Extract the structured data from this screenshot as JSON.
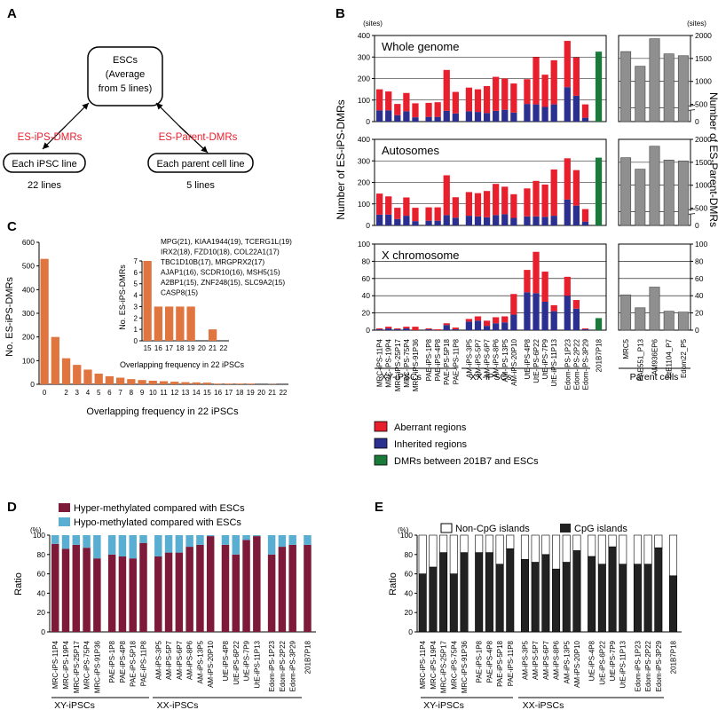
{
  "colors": {
    "aberrant": "#e8202e",
    "inherited": "#2b2f8f",
    "green": "#1a7a3a",
    "gray": "#8f8f8f",
    "orange": "#e07540",
    "hyper": "#7d1a3a",
    "hypo": "#5aaed2",
    "cpg": "#222222",
    "noncpg": "#ffffff"
  },
  "panelA": {
    "letter": "A",
    "esc_lines": [
      "ESCs",
      "(Average",
      "from 5 lines)"
    ],
    "left_label": "ES-iPS-DMRs",
    "right_label": "ES-Parent-DMRs",
    "left_box": "Each iPSC line",
    "right_box": "Each parent cell line",
    "left_count": "22 lines",
    "right_count": "5 lines"
  },
  "panelB": {
    "letter": "B",
    "sites_left": "(sites)",
    "sites_right": "(sites)",
    "ylabel_left": "Number of ES-iPS-DMRs",
    "ylabel_right": "Number of ES-Parent-DMRs",
    "group_labels": [
      "XY-iPSCs",
      "XX-iPSCs",
      "Parent cells"
    ],
    "legend": [
      "Aberrant regions",
      "Inherited regions",
      "DMRs between 201B7 and ESCs"
    ],
    "ticks_big": [
      "0",
      "100",
      "200",
      "300",
      "400"
    ],
    "ticks_right_big": [
      "500",
      "1000",
      "1500",
      "2000"
    ],
    "ticks_x": [
      "0",
      "20",
      "40",
      "60",
      "80",
      "100"
    ],
    "ticks_right_x": [
      "0",
      "20",
      "40",
      "60",
      "80",
      "100"
    ],
    "tick_right_zero": "0"
  },
  "chart_data": [
    {
      "type": "bar",
      "title": "Whole genome",
      "stacked": true,
      "ylim": [
        0,
        400
      ],
      "categories": [
        "MRC-iPS-11P4",
        "MRC-iPS-19P4",
        "MRC-iPS-25P17",
        "MRC-iPS-75P4",
        "MRC-iPS-91P36",
        "PAE-iPS-1P8",
        "PAE-iPS-4P8",
        "PAE-iPS-5P18",
        "PAE-iPS-11P8",
        "AM-iPS-3P5",
        "AM-iPS-5P7",
        "AM-iPS-6P7",
        "AM-iPS-8P6",
        "AM-iPS-13P5",
        "AM-iPS-20P10",
        "UtE-iPS-4P8",
        "UtE-iPS-6P22",
        "UtE-iPS-7P9",
        "UtE-iPS-11P13",
        "Edom-iPS-1P23",
        "Edom-iPS-2P22",
        "Edom-iPS-3P29",
        "201B7P18"
      ],
      "series": [
        {
          "name": "Inherited regions",
          "values": [
            52,
            52,
            30,
            48,
            20,
            22,
            22,
            50,
            38,
            48,
            45,
            40,
            50,
            55,
            42,
            82,
            80,
            68,
            80,
            160,
            120,
            18,
            0
          ]
        },
        {
          "name": "Aberrant regions",
          "values": [
            98,
            88,
            52,
            85,
            65,
            65,
            68,
            190,
            100,
            110,
            105,
            125,
            158,
            145,
            135,
            115,
            220,
            150,
            205,
            215,
            178,
            62,
            0
          ]
        },
        {
          "name": "DMRs between 201B7 and ESCs",
          "values": [
            0,
            0,
            0,
            0,
            0,
            0,
            0,
            0,
            0,
            0,
            0,
            0,
            0,
            0,
            0,
            0,
            0,
            0,
            0,
            0,
            0,
            0,
            325
          ]
        }
      ],
      "parent": {
        "categories": [
          "MRC5",
          "PAE551_P13",
          "AM936EP6",
          "UtE1104_P7",
          "Edom22_P5"
        ],
        "values": [
          1650,
          1330,
          1930,
          1600,
          1560
        ],
        "ylim": [
          0,
          2000
        ]
      }
    },
    {
      "type": "bar",
      "title": "Autosomes",
      "stacked": true,
      "ylim": [
        0,
        400
      ],
      "categories": [
        "MRC-iPS-11P4",
        "MRC-iPS-19P4",
        "MRC-iPS-25P17",
        "MRC-iPS-75P4",
        "MRC-iPS-91P36",
        "PAE-iPS-1P8",
        "PAE-iPS-4P8",
        "PAE-iPS-5P18",
        "PAE-iPS-11P8",
        "AM-iPS-3P5",
        "AM-iPS-5P7",
        "AM-iPS-6P7",
        "AM-iPS-8P6",
        "AM-iPS-13P5",
        "AM-iPS-20P10",
        "UtE-iPS-4P8",
        "UtE-iPS-6P22",
        "UtE-iPS-7P9",
        "UtE-iPS-11P13",
        "Edom-iPS-1P23",
        "Edom-iPS-2P22",
        "Edom-iPS-3P29",
        "201B7P18"
      ],
      "series": [
        {
          "name": "Inherited regions",
          "values": [
            50,
            50,
            30,
            45,
            20,
            22,
            22,
            48,
            36,
            45,
            42,
            38,
            48,
            52,
            35,
            42,
            42,
            40,
            45,
            120,
            92,
            18,
            0
          ]
        },
        {
          "name": "Aberrant regions",
          "values": [
            98,
            85,
            52,
            85,
            62,
            62,
            62,
            185,
            95,
            110,
            108,
            122,
            145,
            128,
            110,
            130,
            165,
            150,
            215,
            192,
            165,
            58,
            0
          ]
        },
        {
          "name": "DMRs between 201B7 and ESCs",
          "values": [
            0,
            0,
            0,
            0,
            0,
            0,
            0,
            0,
            0,
            0,
            0,
            0,
            0,
            0,
            0,
            0,
            0,
            0,
            0,
            0,
            0,
            0,
            315
          ]
        }
      ],
      "parent": {
        "categories": [
          "MRC5",
          "PAE551_P13",
          "AM936EP6",
          "UtE1104_P7",
          "Edom22_P5"
        ],
        "values": [
          1600,
          1350,
          1850,
          1550,
          1530
        ],
        "ylim": [
          0,
          2000
        ]
      }
    },
    {
      "type": "bar",
      "title": "X chromosome",
      "stacked": true,
      "ylim": [
        0,
        100
      ],
      "categories": [
        "MRC-iPS-11P4",
        "MRC-iPS-19P4",
        "MRC-iPS-25P17",
        "MRC-iPS-75P4",
        "MRC-iPS-91P36",
        "PAE-iPS-1P8",
        "PAE-iPS-4P8",
        "PAE-iPS-5P18",
        "PAE-iPS-11P8",
        "AM-iPS-3P5",
        "AM-iPS-5P7",
        "AM-iPS-6P7",
        "AM-iPS-8P6",
        "AM-iPS-13P5",
        "AM-iPS-20P10",
        "UtE-iPS-4P8",
        "UtE-iPS-6P22",
        "UtE-iPS-7P9",
        "UtE-iPS-11P13",
        "Edom-iPS-1P23",
        "Edom-iPS-2P22",
        "Edom-iPS-3P29",
        "201B7P18"
      ],
      "series": [
        {
          "name": "Inherited regions",
          "values": [
            1,
            2,
            1,
            2,
            0,
            1,
            0,
            6,
            1,
            10,
            11,
            5,
            8,
            9,
            18,
            44,
            43,
            33,
            22,
            40,
            25,
            1,
            0
          ]
        },
        {
          "name": "Aberrant regions",
          "values": [
            1,
            2,
            1,
            2,
            4,
            1,
            1,
            2,
            2,
            3,
            5,
            6,
            7,
            7,
            24,
            26,
            48,
            35,
            7,
            22,
            10,
            1,
            0
          ]
        },
        {
          "name": "DMRs between 201B7 and ESCs",
          "values": [
            0,
            0,
            0,
            0,
            0,
            0,
            0,
            0,
            0,
            0,
            0,
            0,
            0,
            0,
            0,
            0,
            0,
            0,
            0,
            0,
            0,
            0,
            14
          ]
        }
      ],
      "parent": {
        "categories": [
          "MRC5",
          "PAE551_P13",
          "AM936EP6",
          "UtE1104_P7",
          "Edom22_P5"
        ],
        "values": [
          41,
          26,
          50,
          22,
          21
        ],
        "ylim": [
          0,
          100
        ]
      }
    },
    {
      "type": "bar",
      "ylabel": "No. ES-iPS-DMRs",
      "xlabel": "Overlapping frequency in 22 iPSCs",
      "categories": [
        "0",
        "1",
        "2",
        "3",
        "4",
        "5",
        "6",
        "7",
        "8",
        "9",
        "10",
        "11",
        "12",
        "13",
        "14",
        "15",
        "16",
        "17",
        "18",
        "19",
        "20",
        "21",
        "22"
      ],
      "values": [
        530,
        200,
        110,
        82,
        62,
        45,
        34,
        28,
        22,
        18,
        15,
        13,
        11,
        9,
        8,
        7,
        3,
        3,
        3,
        3,
        0,
        1,
        0
      ],
      "ylim": [
        0,
        600
      ],
      "inset": {
        "ylabel": "No. ES-iPS-DMRs",
        "xlabel": "Overlapping frequency in 22 iPSCs",
        "categories": [
          "15",
          "16",
          "17",
          "18",
          "19",
          "20",
          "21",
          "22"
        ],
        "values": [
          7,
          3,
          3,
          3,
          3,
          0,
          1,
          0
        ],
        "ylim": [
          0,
          7
        ],
        "annotations": [
          "MPG(21), KIAA1944(19), TCERG1L(19)",
          "IRX2(18), FZD10(18), COL22A1(17)",
          "TBC1D10B(17), MRGPRX2(17)",
          "AJAP1(16), SCDR10(16), MSH5(15)",
          "A2BP1(15), ZNF248(15), SLC9A2(15)",
          "CASP8(15)"
        ]
      }
    },
    {
      "type": "bar",
      "stacked": true,
      "ylabel": "Ratio",
      "ylim": [
        0,
        100
      ],
      "categories": [
        "MRC-iPS-11P4",
        "MRC-iPS-19P4",
        "MRC-iPS-25P17",
        "MRC-iPS-75P4",
        "MRC-iPS-91P36",
        "PAE-iPS-1P8",
        "PAE-iPS-4P8",
        "PAE-iPS-5P18",
        "PAE-iPS-11P8",
        "AM-iPS-3P5",
        "AM-iPS-5P7",
        "AM-iPS-6P7",
        "AM-iPS-8P6",
        "AM-iPS-13P5",
        "AM-iPS-20P10",
        "UtE-iPS-4P8",
        "UtE-iPS-6P22",
        "UtE-iPS-7P9",
        "UtE-iPS-11P13",
        "Edom-iPS-1P23",
        "Edom-iPS-2P22",
        "Edom-iPS-3P29",
        "201B7P18"
      ],
      "series": [
        {
          "name": "Hyper-methylated compared with ESCs",
          "values": [
            91,
            86,
            90,
            87,
            76,
            80,
            78,
            76,
            92,
            78,
            82,
            82,
            88,
            90,
            99,
            90,
            80,
            95,
            99,
            80,
            88,
            90,
            90
          ]
        },
        {
          "name": "Hypo-methylated compared with ESCs",
          "values": [
            9,
            14,
            10,
            13,
            24,
            20,
            22,
            24,
            8,
            22,
            18,
            18,
            12,
            10,
            1,
            10,
            20,
            5,
            1,
            20,
            12,
            10,
            10
          ]
        }
      ]
    },
    {
      "type": "bar",
      "stacked": true,
      "ylabel": "Ratio",
      "ylim": [
        0,
        100
      ],
      "categories": [
        "MRC-iPS-11P4",
        "MRC-iPS-19P4",
        "MRC-iPS-25P17",
        "MRC-iPS-75P4",
        "MRC-iPS-91P36",
        "PAE-iPS-1P8",
        "PAE-iPS-4P8",
        "PAE-iPS-5P18",
        "PAE-iPS-11P8",
        "AM-iPS-3P5",
        "AM-iPS-5P7",
        "AM-iPS-6P7",
        "AM-iPS-8P6",
        "AM-iPS-13P5",
        "AM-iPS-20P10",
        "UtE-iPS-4P8",
        "UtE-iPS-6P22",
        "UtE-iPS-7P9",
        "UtE-iPS-11P13",
        "Edom-iPS-1P23",
        "Edom-iPS-2P22",
        "Edom-iPS-3P29",
        "201B7P18"
      ],
      "series": [
        {
          "name": "CpG islands",
          "values": [
            60,
            67,
            82,
            60,
            82,
            82,
            82,
            70,
            86,
            75,
            72,
            80,
            65,
            72,
            84,
            78,
            70,
            88,
            70,
            70,
            70,
            87,
            58
          ]
        },
        {
          "name": "Non-CpG islands",
          "values": [
            40,
            33,
            18,
            40,
            18,
            18,
            18,
            30,
            14,
            25,
            28,
            20,
            35,
            28,
            16,
            22,
            30,
            12,
            30,
            30,
            30,
            13,
            42
          ]
        }
      ]
    }
  ],
  "panelC": {
    "letter": "C",
    "ticks_y": [
      "0",
      "100",
      "200",
      "300",
      "400",
      "500",
      "600"
    ],
    "inset_ticks_y": [
      "0",
      "1",
      "2",
      "3",
      "4",
      "5",
      "6",
      "7"
    ]
  },
  "panelD": {
    "letter": "D",
    "unit": "(%)",
    "legend": [
      "Hyper-methylated compared with ESCs",
      "Hypo-methylated compared with ESCs"
    ],
    "ticks": [
      "0",
      "20",
      "40",
      "60",
      "80",
      "100"
    ],
    "group_labels": [
      "XY-iPSCs",
      "XX-iPSCs"
    ]
  },
  "panelE": {
    "letter": "E",
    "unit": "(%)",
    "legend": [
      "Non-CpG islands",
      "CpG islands"
    ],
    "ticks": [
      "0",
      "20",
      "40",
      "60",
      "80",
      "100"
    ],
    "group_labels": [
      "XY-iPSCs",
      "XX-iPSCs"
    ]
  }
}
